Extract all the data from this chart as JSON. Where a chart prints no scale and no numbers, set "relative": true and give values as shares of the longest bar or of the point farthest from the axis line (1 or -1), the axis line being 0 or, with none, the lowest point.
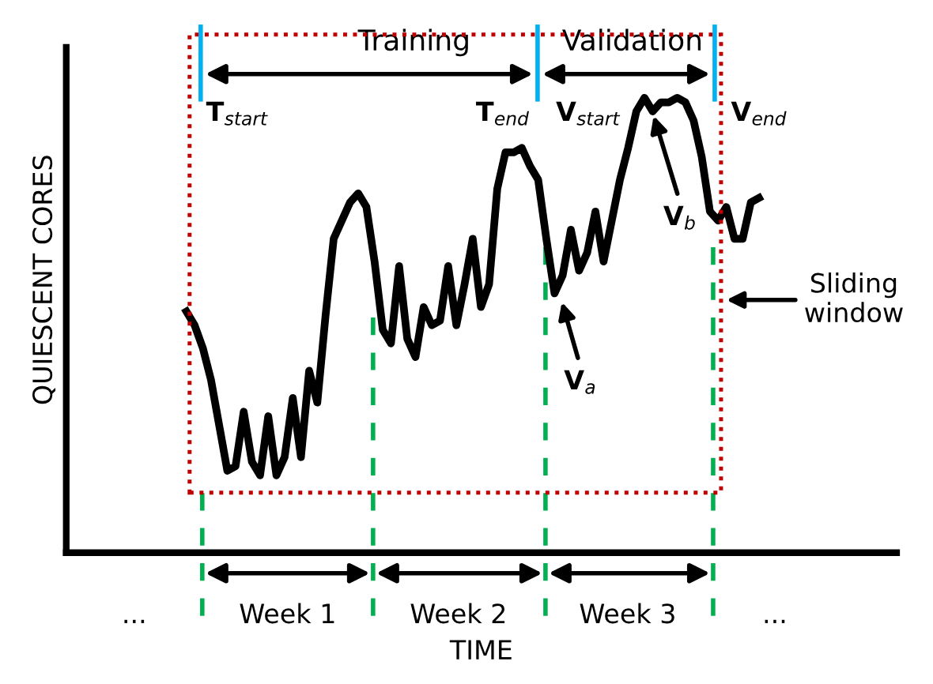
{
  "chart_data": {
    "type": "line",
    "relative": true,
    "xlabel": "TIME",
    "ylabel": "QUIESCENT CORES",
    "categories": [
      null,
      null,
      null,
      null,
      null,
      null,
      null,
      null,
      null,
      null,
      null,
      null,
      null,
      null,
      null,
      null,
      null,
      null,
      null,
      null,
      null,
      null,
      null,
      null,
      null,
      null,
      null,
      null,
      null,
      null,
      null,
      null,
      null,
      null,
      null,
      null,
      null,
      null,
      null,
      null,
      null,
      null,
      null,
      null,
      null,
      null,
      null,
      null,
      null,
      null,
      null,
      null,
      null,
      null,
      null,
      null,
      null,
      null,
      null,
      null,
      null,
      null,
      null,
      null,
      null,
      null,
      null,
      null,
      null,
      null,
      null
    ],
    "series": [
      {
        "color": "#000000",
        "values": [
          0.53,
          0.5,
          0.45,
          0.38,
          0.28,
          0.18,
          0.19,
          0.31,
          0.2,
          0.17,
          0.3,
          0.17,
          0.21,
          0.34,
          0.21,
          0.4,
          0.33,
          0.52,
          0.69,
          0.73,
          0.77,
          0.79,
          0.76,
          0.64,
          0.49,
          0.46,
          0.63,
          0.47,
          0.43,
          0.54,
          0.5,
          0.51,
          0.63,
          0.5,
          0.59,
          0.69,
          0.54,
          0.59,
          0.8,
          0.88,
          0.88,
          0.89,
          0.85,
          0.82,
          0.69,
          0.57,
          0.61,
          0.71,
          0.62,
          0.66,
          0.75,
          0.64,
          0.73,
          0.82,
          0.89,
          0.97,
          1.0,
          0.97,
          0.99,
          0.99,
          1.0,
          0.99,
          0.95,
          0.87,
          0.75,
          0.73,
          0.76,
          0.69,
          0.69,
          0.77,
          0.78
        ]
      }
    ],
    "annotations": [
      "Training",
      "Validation",
      "T$_{start}$",
      "T$_{end}$",
      "V$_{start}$",
      "V$_{end}$",
      "V$_{a}$",
      "V$_{b}$",
      "Sliding\nwindow",
      "...",
      "Week 1",
      "Week 2",
      "Week 3",
      "..."
    ],
    "marker": "none",
    "line_style": "solid"
  }
}
